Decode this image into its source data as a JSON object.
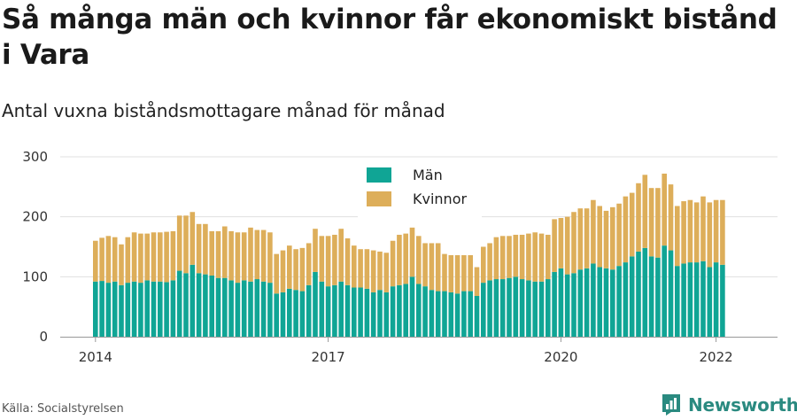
{
  "title": "Så många män och kvinnor får ekonomiskt bistånd i Vara",
  "subtitle": "Antal vuxna biståndsmottagare månad för månad",
  "source": "Källa: Socialstyrelsen",
  "brand": {
    "name": "Newsworthy",
    "icon": "newsworthy-logo-icon"
  },
  "colors": {
    "man": "#10a595",
    "kvinnor": "#ddae5a",
    "grid": "#e0e0e0",
    "axis": "#999999"
  },
  "chart_data": {
    "type": "bar",
    "stacked": true,
    "x_start": "2014-01",
    "x_end": "2022-04",
    "x_ticks": [
      "2014",
      "2017",
      "2020",
      "2022"
    ],
    "y_ticks": [
      "0",
      "100",
      "200",
      "300"
    ],
    "ylim": [
      0,
      300
    ],
    "grid": true,
    "legend_position": "top-center",
    "series": [
      {
        "name": "Män",
        "values": [
          92,
          93,
          90,
          92,
          86,
          90,
          92,
          90,
          94,
          92,
          92,
          91,
          94,
          110,
          106,
          120,
          106,
          104,
          102,
          98,
          98,
          94,
          90,
          94,
          92,
          96,
          92,
          90,
          72,
          74,
          80,
          78,
          76,
          86,
          108,
          92,
          84,
          86,
          92,
          86,
          82,
          82,
          80,
          74,
          78,
          74,
          84,
          86,
          88,
          100,
          88,
          84,
          78,
          76,
          76,
          74,
          72,
          76,
          76,
          68,
          90,
          94,
          96,
          96,
          98,
          100,
          96,
          94,
          92,
          92,
          96,
          108,
          114,
          104,
          106,
          112,
          114,
          122,
          116,
          114,
          112,
          118,
          124,
          134,
          142,
          148,
          134,
          132,
          152,
          144,
          118,
          122,
          124,
          124,
          126,
          116,
          124,
          120
        ]
      },
      {
        "name": "Kvinnor",
        "values": [
          68,
          72,
          78,
          74,
          68,
          76,
          82,
          82,
          78,
          82,
          82,
          84,
          82,
          92,
          96,
          88,
          82,
          84,
          74,
          78,
          86,
          82,
          84,
          80,
          90,
          82,
          86,
          84,
          66,
          70,
          72,
          68,
          72,
          70,
          72,
          76,
          84,
          84,
          88,
          78,
          70,
          64,
          66,
          70,
          64,
          66,
          76,
          84,
          84,
          82,
          80,
          72,
          78,
          80,
          62,
          62,
          64,
          60,
          60,
          48,
          60,
          62,
          70,
          72,
          70,
          70,
          74,
          78,
          82,
          80,
          74,
          88,
          84,
          96,
          102,
          102,
          100,
          106,
          102,
          96,
          104,
          104,
          110,
          106,
          114,
          122,
          114,
          116,
          120,
          110,
          100,
          104,
          104,
          100,
          108,
          108,
          104,
          108
        ]
      }
    ]
  }
}
